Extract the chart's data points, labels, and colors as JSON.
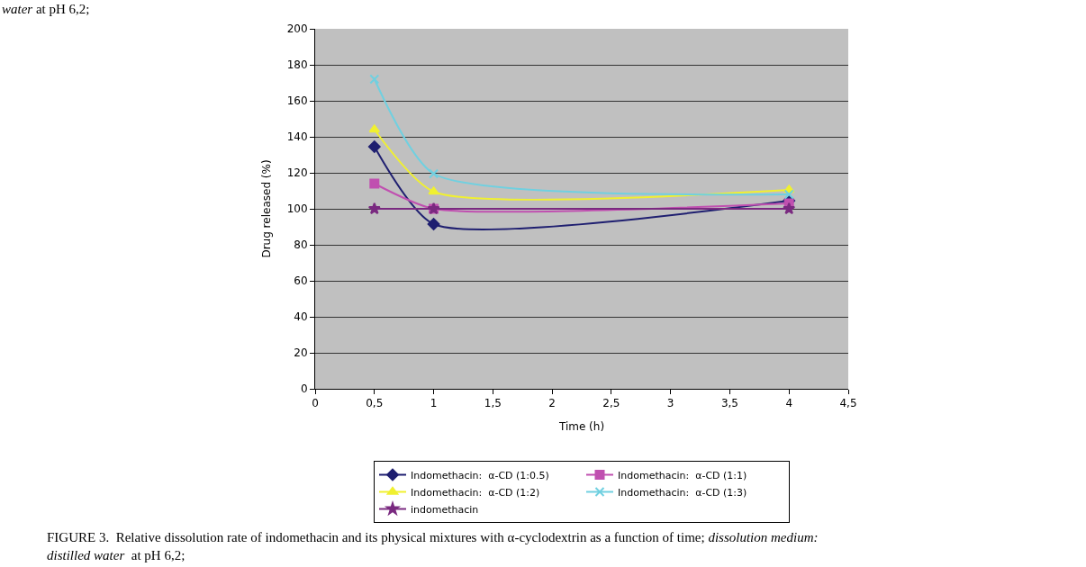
{
  "chart_data": {
    "type": "line",
    "xlabel": "Time (h)",
    "ylabel": "Drug released (%)",
    "x": [
      0.5,
      1,
      4
    ],
    "series": [
      {
        "name": "Indomethacin:  α-CD (1:0.5)",
        "color": "#1f1f70",
        "marker": "diamond",
        "values": [
          134.5,
          91.5,
          104.5
        ]
      },
      {
        "name": "Indomethacin:  α-CD (1:1)",
        "color": "#c050b0",
        "marker": "square",
        "values": [
          114,
          100,
          103
        ]
      },
      {
        "name": "Indomethacin:  α-CD (1:2)",
        "color": "#f0f030",
        "marker": "triangle",
        "values": [
          144,
          109.5,
          110.5
        ]
      },
      {
        "name": "Indomethacin:  α-CD (1:3)",
        "color": "#70d0e0",
        "marker": "cross",
        "values": [
          172,
          119.5,
          108
        ]
      },
      {
        "name": "indomethacin",
        "color": "#7a2a80",
        "marker": "star",
        "values": [
          100,
          100,
          100
        ]
      }
    ],
    "xlim": [
      0,
      4.5
    ],
    "xticks": [
      {
        "value": 0,
        "label": "0"
      },
      {
        "value": 0.5,
        "label": "0,5"
      },
      {
        "value": 1,
        "label": "1"
      },
      {
        "value": 1.5,
        "label": "1,5"
      },
      {
        "value": 2,
        "label": "2"
      },
      {
        "value": 2.5,
        "label": "2,5"
      },
      {
        "value": 3,
        "label": "3"
      },
      {
        "value": 3.5,
        "label": "3,5"
      },
      {
        "value": 4,
        "label": "4"
      },
      {
        "value": 4.5,
        "label": "4,5"
      }
    ],
    "ylim": [
      0,
      200
    ],
    "yticks": [
      0,
      20,
      40,
      60,
      80,
      100,
      120,
      140,
      160,
      180,
      200
    ],
    "grid": "y",
    "legend": "bottom",
    "annotations": [
      "$^{}$water at pH 6,2;",
      "FIGURE 3.  Relative dissolution rate of indomethacin and its physical mixtures with α-cyclodextrin as a function of time; dissolution medium: distilled water  at pH 6,2;"
    ]
  }
}
